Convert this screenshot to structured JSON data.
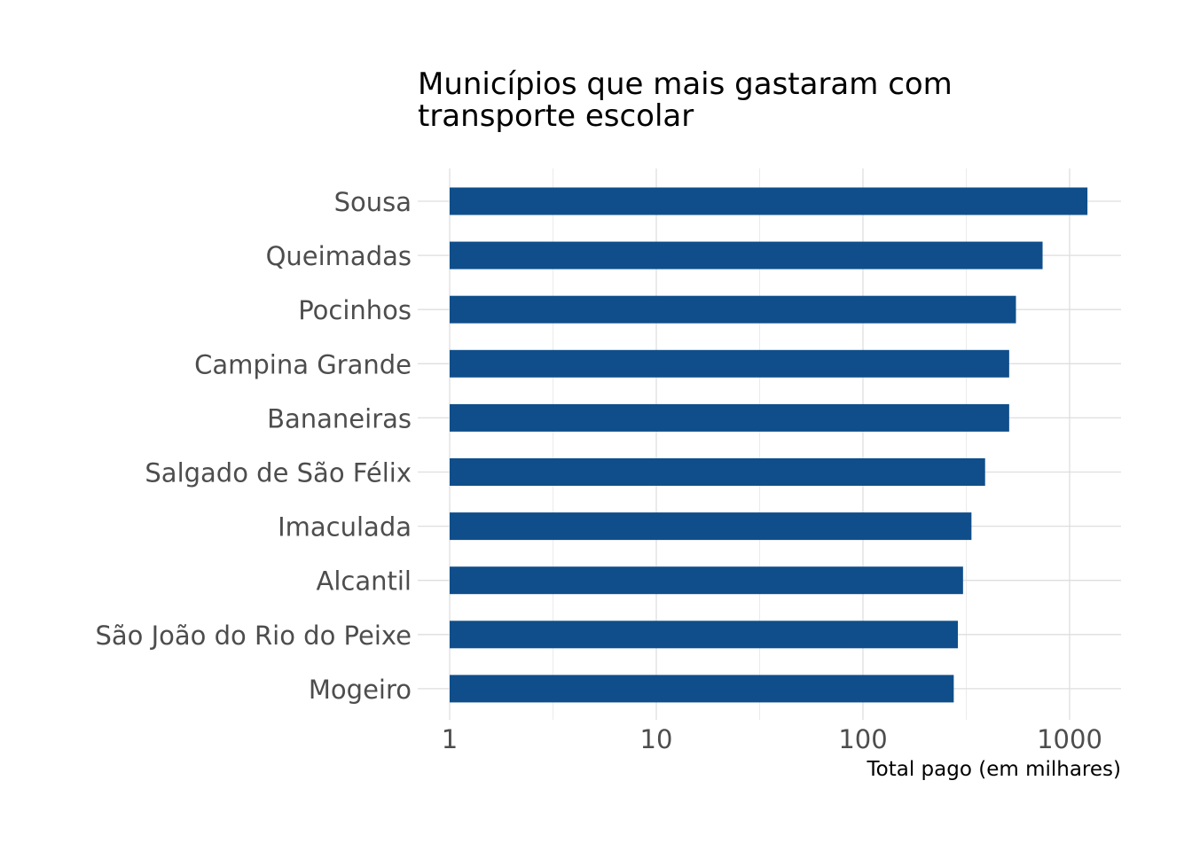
{
  "chart_data": {
    "type": "bar",
    "orientation": "horizontal",
    "title_lines": [
      "Municípios que mais gastaram com",
      "transporte escolar"
    ],
    "xlabel": "Total pago (em milhares)",
    "ylabel": "",
    "xscale": "log10",
    "xlim": [
      1,
      1800
    ],
    "xticks": [
      1,
      10,
      100,
      1000
    ],
    "xtick_labels": [
      "1",
      "10",
      "100",
      "1000"
    ],
    "grid": true,
    "bar_color": "#0f4e8a",
    "categories": [
      "Sousa",
      "Queimadas",
      "Pocinhos",
      "Campina Grande",
      "Bananeiras",
      "Salgado de São Félix",
      "Imaculada",
      "Alcantil",
      "São João do Rio do Peixe",
      "Mogeiro"
    ],
    "values": [
      1220,
      740,
      550,
      510,
      510,
      390,
      335,
      305,
      288,
      275
    ]
  }
}
